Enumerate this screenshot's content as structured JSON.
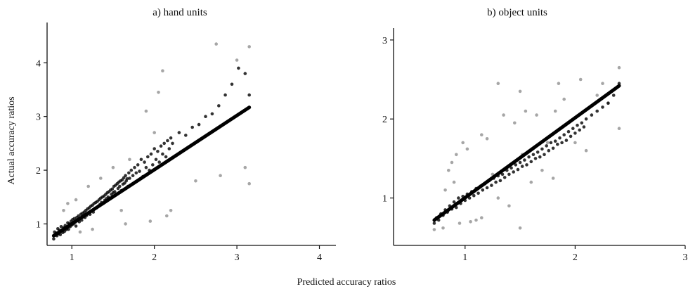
{
  "figure": {
    "shared_xlabel": "Predicted accuracy ratios",
    "shared_ylabel": "Actual accuracy ratios"
  },
  "chart_data": [
    {
      "type": "scatter",
      "title": "a)  hand units",
      "xlabel": "Predicted accuracy ratios",
      "ylabel": "Actual accuracy ratios",
      "xlim": [
        0.7,
        4.2
      ],
      "ylim": [
        0.6,
        4.75
      ],
      "xticks": [
        1,
        2,
        3,
        4
      ],
      "yticks": [
        1,
        2,
        3,
        4
      ],
      "grid": false,
      "regression_line": {
        "x": [
          0.78,
          3.15
        ],
        "y": [
          0.78,
          3.17
        ]
      },
      "point_color": "#000000",
      "series": [
        {
          "x": [
            0.78,
            0.79,
            0.8,
            0.81,
            0.82,
            0.83,
            0.84,
            0.85,
            0.86,
            0.87,
            0.88,
            0.89,
            0.9,
            0.91,
            0.92,
            0.93,
            0.94,
            0.95,
            0.96,
            0.97,
            0.98,
            0.99,
            1.0,
            1.01,
            1.02,
            1.03,
            1.04,
            1.05,
            1.06,
            1.07,
            1.08,
            1.09,
            1.1,
            1.11,
            1.12,
            1.13,
            1.14,
            1.15,
            1.16,
            1.17,
            1.18,
            1.19,
            1.2,
            1.21,
            1.22,
            1.23,
            1.24,
            1.25,
            1.26,
            1.27,
            1.28,
            1.29,
            1.3,
            1.31,
            1.32,
            1.33,
            1.34,
            1.35,
            1.36,
            1.37,
            1.38,
            1.39,
            1.4,
            1.41,
            1.42,
            1.43,
            1.44,
            1.45,
            1.46,
            1.47,
            1.48,
            1.49,
            1.5,
            1.51,
            1.52,
            1.53,
            1.54,
            1.55,
            1.56,
            1.57,
            1.58,
            1.59,
            1.6,
            1.61,
            1.62,
            1.63,
            1.64,
            1.65,
            1.66,
            1.67,
            1.68,
            1.69,
            1.7,
            1.72,
            1.74,
            1.76,
            1.78,
            1.8,
            1.82,
            1.84,
            1.86,
            1.88,
            1.9,
            1.92,
            1.94,
            1.96,
            1.98,
            2.0,
            2.02,
            2.04,
            2.06,
            2.08,
            2.1,
            2.12,
            2.14,
            2.16,
            2.18,
            2.2,
            2.22,
            2.3,
            2.38,
            2.46,
            2.54,
            2.62,
            2.7,
            2.78,
            2.86,
            2.94,
            3.02,
            3.1,
            3.15
          ],
          "y": [
            0.72,
            0.85,
            0.79,
            0.83,
            0.78,
            0.91,
            0.82,
            0.88,
            0.8,
            0.95,
            0.87,
            0.84,
            0.93,
            0.86,
            0.97,
            0.89,
            0.92,
            1.02,
            0.9,
            1.0,
            0.95,
            1.05,
            0.98,
            1.08,
            1.0,
            1.1,
            1.03,
            0.96,
            1.12,
            1.06,
            1.15,
            1.04,
            1.1,
            1.18,
            1.07,
            1.2,
            1.13,
            1.22,
            1.12,
            1.25,
            1.16,
            1.28,
            1.2,
            1.3,
            1.18,
            1.33,
            1.24,
            1.35,
            1.22,
            1.38,
            1.29,
            1.4,
            1.3,
            1.42,
            1.33,
            1.45,
            1.36,
            1.48,
            1.4,
            1.5,
            1.38,
            1.52,
            1.44,
            1.55,
            1.47,
            1.58,
            1.5,
            1.6,
            1.48,
            1.63,
            1.55,
            1.65,
            1.58,
            1.7,
            1.6,
            1.72,
            1.55,
            1.75,
            1.66,
            1.78,
            1.7,
            1.8,
            1.62,
            1.82,
            1.74,
            1.86,
            1.76,
            1.9,
            1.8,
            1.84,
            1.7,
            1.95,
            1.85,
            2.0,
            1.9,
            2.05,
            1.95,
            2.1,
            1.98,
            2.2,
            1.88,
            2.15,
            2.05,
            2.25,
            2.0,
            2.3,
            2.1,
            2.4,
            2.2,
            2.35,
            2.15,
            2.45,
            2.3,
            2.5,
            2.25,
            2.55,
            2.4,
            2.6,
            2.5,
            2.7,
            2.65,
            2.8,
            2.85,
            3.0,
            3.05,
            3.2,
            3.4,
            3.6,
            3.9,
            3.8,
            3.4
          ]
        },
        {
          "x": [
            0.9,
            0.95,
            1.05,
            1.2,
            1.35,
            1.5,
            1.6,
            1.7,
            1.9,
            1.95,
            2.0,
            2.05,
            2.1,
            2.2,
            2.5,
            2.75,
            2.8,
            3.0,
            3.1,
            3.15,
            3.15,
            2.15,
            1.65,
            1.25,
            1.1
          ],
          "y": [
            1.25,
            1.38,
            1.45,
            1.7,
            1.85,
            2.05,
            1.25,
            2.2,
            3.1,
            1.05,
            2.7,
            3.45,
            3.85,
            1.25,
            1.8,
            4.35,
            1.9,
            4.05,
            2.05,
            4.3,
            1.75,
            1.15,
            1.0,
            0.9,
            0.85
          ]
        }
      ]
    },
    {
      "type": "scatter",
      "title": "b)  object units",
      "xlabel": "Predicted accuracy ratios",
      "ylabel": "Actual accuracy ratios",
      "xlim": [
        0.35,
        3.0
      ],
      "ylim": [
        0.4,
        3.15
      ],
      "xticks": [
        1,
        2,
        3
      ],
      "yticks": [
        1,
        2,
        3
      ],
      "grid": false,
      "regression_line": {
        "x": [
          0.72,
          2.4
        ],
        "y": [
          0.72,
          2.42
        ]
      },
      "point_color": "#000000",
      "series": [
        {
          "x": [
            0.72,
            0.74,
            0.76,
            0.78,
            0.8,
            0.82,
            0.84,
            0.86,
            0.88,
            0.9,
            0.92,
            0.94,
            0.96,
            0.98,
            1.0,
            1.02,
            1.04,
            1.06,
            1.08,
            1.1,
            1.12,
            1.14,
            1.16,
            1.18,
            1.2,
            1.22,
            1.24,
            1.26,
            1.28,
            1.3,
            1.32,
            1.34,
            1.36,
            1.38,
            1.4,
            1.42,
            1.44,
            1.46,
            1.48,
            1.5,
            1.52,
            1.54,
            1.56,
            1.58,
            1.6,
            1.62,
            1.64,
            1.66,
            1.68,
            1.7,
            1.72,
            1.74,
            1.76,
            1.78,
            1.8,
            1.82,
            1.84,
            1.86,
            1.88,
            1.9,
            1.92,
            1.94,
            1.96,
            1.98,
            2.0,
            2.02,
            2.04,
            2.06,
            2.08,
            2.1,
            2.15,
            2.2,
            2.25,
            2.3,
            2.35,
            2.4
          ],
          "y": [
            0.68,
            0.75,
            0.72,
            0.8,
            0.78,
            0.85,
            0.82,
            0.9,
            0.86,
            0.95,
            0.88,
            1.0,
            0.93,
            1.02,
            0.97,
            1.05,
            1.0,
            1.08,
            1.03,
            1.12,
            1.06,
            1.15,
            1.1,
            1.18,
            1.13,
            1.22,
            1.16,
            1.25,
            1.2,
            1.28,
            1.22,
            1.3,
            1.26,
            1.35,
            1.3,
            1.38,
            1.33,
            1.42,
            1.36,
            1.45,
            1.4,
            1.48,
            1.42,
            1.52,
            1.46,
            1.55,
            1.5,
            1.58,
            1.52,
            1.62,
            1.55,
            1.66,
            1.6,
            1.7,
            1.63,
            1.72,
            1.68,
            1.76,
            1.7,
            1.8,
            1.73,
            1.84,
            1.78,
            1.88,
            1.82,
            1.92,
            1.86,
            1.95,
            1.9,
            2.0,
            2.05,
            2.1,
            2.15,
            2.2,
            2.3,
            2.45
          ]
        },
        {
          "x": [
            0.72,
            0.8,
            0.85,
            0.88,
            0.92,
            0.98,
            1.02,
            1.1,
            1.15,
            1.2,
            1.25,
            1.3,
            1.35,
            1.4,
            1.45,
            1.5,
            1.5,
            1.55,
            1.6,
            1.65,
            1.7,
            1.75,
            1.8,
            1.82,
            1.85,
            1.9,
            2.0,
            2.05,
            2.1,
            2.2,
            2.25,
            2.3,
            2.4,
            2.4,
            1.15,
            1.05,
            0.95,
            0.9,
            0.82,
            1.3,
            1.52
          ],
          "y": [
            0.6,
            0.62,
            1.35,
            1.45,
            1.55,
            1.7,
            1.62,
            0.72,
            1.8,
            1.75,
            1.3,
            2.45,
            2.05,
            0.9,
            1.95,
            2.35,
            0.62,
            2.1,
            1.2,
            2.05,
            1.35,
            1.7,
            1.25,
            2.1,
            2.45,
            2.25,
            1.7,
            2.5,
            1.6,
            2.3,
            2.45,
            2.2,
            2.65,
            1.88,
            0.75,
            0.7,
            0.68,
            1.2,
            1.1,
            1.0,
            1.55
          ]
        }
      ]
    }
  ]
}
